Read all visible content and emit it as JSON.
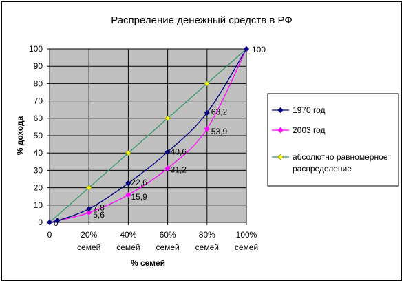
{
  "chart_data": {
    "type": "line",
    "title": "Распреление денежный средств в РФ",
    "xlabel": "% семей",
    "ylabel": "% дохода",
    "x": [
      0,
      20,
      40,
      60,
      80,
      100
    ],
    "x_tick_labels": [
      [
        "0"
      ],
      [
        "20%",
        "семей"
      ],
      [
        "40%",
        "семей"
      ],
      [
        "60%",
        "семей"
      ],
      [
        "80%",
        "семей"
      ],
      [
        "100%",
        "семей"
      ]
    ],
    "y_ticks": [
      0,
      10,
      20,
      30,
      40,
      50,
      60,
      70,
      80,
      90,
      100
    ],
    "xlim": [
      0,
      100
    ],
    "ylim": [
      0,
      100
    ],
    "grid": true,
    "legend_position": "right",
    "plot_background": "#c0c0c0",
    "series": [
      {
        "name": "1970 год",
        "color": "#000080",
        "marker": "diamond",
        "points": [
          [
            0,
            0
          ],
          [
            4,
            1
          ],
          [
            20,
            7.8
          ],
          [
            40,
            22.6
          ],
          [
            60,
            40.6
          ],
          [
            80,
            63.2
          ],
          [
            100,
            100
          ]
        ],
        "labels": [
          {
            "x": 20,
            "y": 7.8,
            "text": "7,8"
          },
          {
            "x": 40,
            "y": 22.6,
            "text": "22,6"
          },
          {
            "x": 60,
            "y": 40.6,
            "text": "40,6"
          },
          {
            "x": 80,
            "y": 63.2,
            "text": "63,2"
          }
        ]
      },
      {
        "name": "2003 год",
        "color": "#ff00ff",
        "marker": "diamond",
        "points": [
          [
            0,
            0
          ],
          [
            4,
            1
          ],
          [
            20,
            5.6
          ],
          [
            40,
            15.9
          ],
          [
            60,
            31.2
          ],
          [
            80,
            53.9
          ],
          [
            100,
            100
          ]
        ],
        "labels": [
          {
            "x": 20,
            "y": 5.6,
            "text": "5,6"
          },
          {
            "x": 40,
            "y": 15.9,
            "text": "15,9"
          },
          {
            "x": 60,
            "y": 31.2,
            "text": "31,2"
          },
          {
            "x": 80,
            "y": 53.9,
            "text": "53,9"
          }
        ]
      },
      {
        "name": "абсолютно равномерное распределение",
        "legend_lines": [
          "абсолютно равномерное",
          "распределение"
        ],
        "color": "#339966",
        "marker_color": "#ffff00",
        "marker": "diamond",
        "points": [
          [
            0,
            0
          ],
          [
            20,
            20
          ],
          [
            40,
            40
          ],
          [
            60,
            60
          ],
          [
            80,
            80
          ],
          [
            100,
            100
          ]
        ],
        "labels": [
          {
            "x": 0,
            "y": 0,
            "text": "0"
          },
          {
            "x": 100,
            "y": 100,
            "text": "100"
          }
        ]
      }
    ]
  }
}
